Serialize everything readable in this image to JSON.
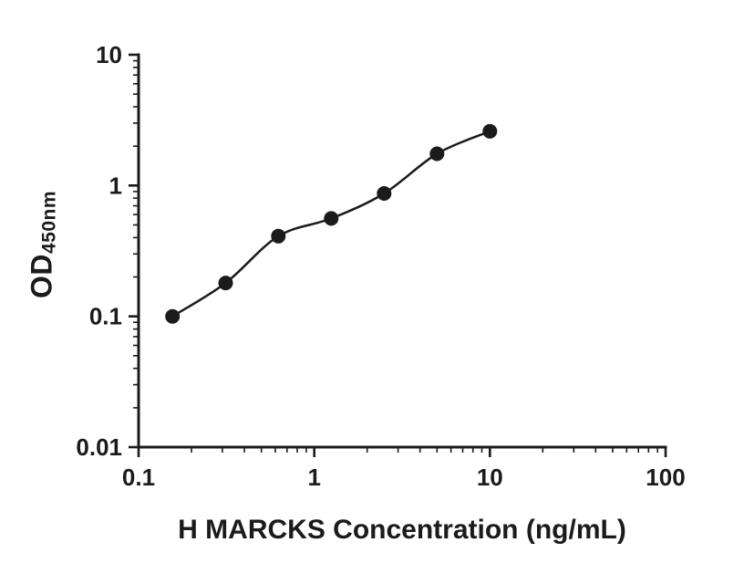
{
  "chart_data": {
    "type": "scatter",
    "title": "",
    "xlabel": "H MARCKS Concentration (ng/mL)",
    "ylabel_main": "OD",
    "ylabel_sub": "450nm",
    "x_scale": "log",
    "y_scale": "log",
    "xlim": [
      0.1,
      100
    ],
    "ylim": [
      0.01,
      10
    ],
    "x_major_ticks": [
      0.1,
      1,
      10,
      100
    ],
    "x_tick_labels": [
      "0.1",
      "1",
      "10",
      "100"
    ],
    "y_major_ticks": [
      10,
      1,
      0.1,
      0.01
    ],
    "y_tick_labels": [
      "10",
      "1",
      "0.1",
      "0.01"
    ],
    "points": {
      "x": [
        0.156,
        0.313,
        0.625,
        1.25,
        2.5,
        5,
        10
      ],
      "y": [
        0.1,
        0.18,
        0.41,
        0.56,
        0.87,
        1.75,
        2.6
      ]
    },
    "fit_line": true,
    "grid": false,
    "legend": false,
    "marker_color": "#1b1b1b",
    "line_color": "#1b1b1b",
    "ink_color": "#1b1b1b"
  }
}
